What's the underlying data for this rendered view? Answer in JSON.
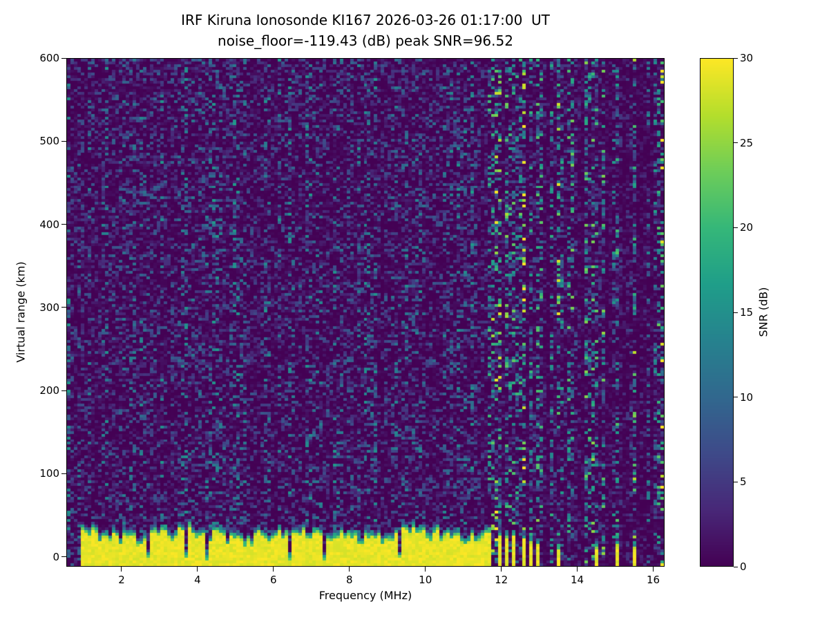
{
  "chart_data": {
    "type": "heatmap",
    "title": "IRF Kiruna Ionosonde KI167 2026-03-26 01:17:00  UT",
    "subtitle": "noise_floor=-119.43 (dB) peak SNR=96.52",
    "xlabel": "Frequency (MHz)",
    "ylabel": "Virtual range (km)",
    "colorbar_label": "SNR (dB)",
    "colormap": "viridis",
    "xlim": [
      0.545,
      16.3
    ],
    "ylim": [
      -12,
      600
    ],
    "clim": [
      0,
      30
    ],
    "x_ticks": [
      2,
      4,
      6,
      8,
      10,
      12,
      14,
      16
    ],
    "y_ticks": [
      0,
      100,
      200,
      300,
      400,
      500,
      600
    ],
    "colorbar_ticks": [
      0,
      5,
      10,
      15,
      20,
      25,
      30
    ],
    "noise_floor_db": -119.43,
    "peak_snr_db": 96.52,
    "features": {
      "background": {
        "snr_base_db": 0,
        "speckle_max_db": 13,
        "description": "dark purple background with sparse faint blue noise speckles over full range"
      },
      "ground_echo_band": {
        "x_start_mhz": 0.95,
        "x_end_mhz": 11.62,
        "y_base_km": -12,
        "y_top_mean_km": 32,
        "y_top_jitter_km": 16,
        "core_snr_db": 30,
        "fringe_depth_km": 9,
        "notch_freqs_mhz": [
          1.55,
          2.7,
          3.0,
          3.7,
          4.25,
          5.0,
          6.4,
          7.35,
          9.3
        ]
      },
      "pulsed_stripes": [
        {
          "f": 11.68,
          "h": 36
        },
        {
          "f": 11.84,
          "h": 34
        },
        {
          "f": 12.0,
          "h": 32
        },
        {
          "f": 12.16,
          "h": 31
        },
        {
          "f": 12.32,
          "h": 30
        },
        {
          "f": 12.48,
          "h": 29
        },
        {
          "f": 12.64,
          "h": 27
        },
        {
          "f": 12.8,
          "h": 26
        },
        {
          "f": 12.96,
          "h": 25
        },
        {
          "f": 13.5,
          "h": 16
        },
        {
          "f": 13.85,
          "h": 18
        },
        {
          "f": 14.3,
          "h": 21
        },
        {
          "f": 14.55,
          "h": 19
        },
        {
          "f": 15.1,
          "h": 21
        },
        {
          "f": 15.55,
          "h": 19
        },
        {
          "f": 16.2,
          "h": 21
        }
      ],
      "noisy_column_region_start_mhz": 11.6
    }
  }
}
